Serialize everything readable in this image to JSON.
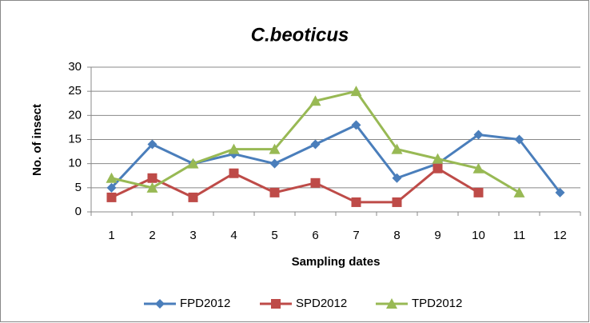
{
  "chart_data": {
    "type": "line",
    "title": "C.beoticus",
    "x_label": "Sampling dates",
    "y_label": "No. of insect",
    "categories": [
      "1",
      "2",
      "3",
      "4",
      "5",
      "6",
      "7",
      "8",
      "9",
      "10",
      "11",
      "12"
    ],
    "series": [
      {
        "name": "FPD2012",
        "color": "#4a7ebb",
        "marker": "diamond",
        "values": [
          5,
          14,
          10,
          12,
          10,
          14,
          18,
          7,
          10,
          16,
          15,
          4
        ]
      },
      {
        "name": "SPD2012",
        "color": "#be4b48",
        "marker": "square",
        "values": [
          3,
          7,
          3,
          8,
          4,
          6,
          2,
          2,
          9,
          4,
          null,
          null
        ]
      },
      {
        "name": "TPD2012",
        "color": "#98b954",
        "marker": "triangle",
        "values": [
          7,
          5,
          10,
          13,
          13,
          23,
          25,
          13,
          11,
          9,
          4,
          null
        ]
      }
    ],
    "ylim": [
      0,
      30
    ],
    "yticks": [
      0,
      5,
      10,
      15,
      20,
      25,
      30
    ],
    "grid": true,
    "legend": "bottom"
  }
}
